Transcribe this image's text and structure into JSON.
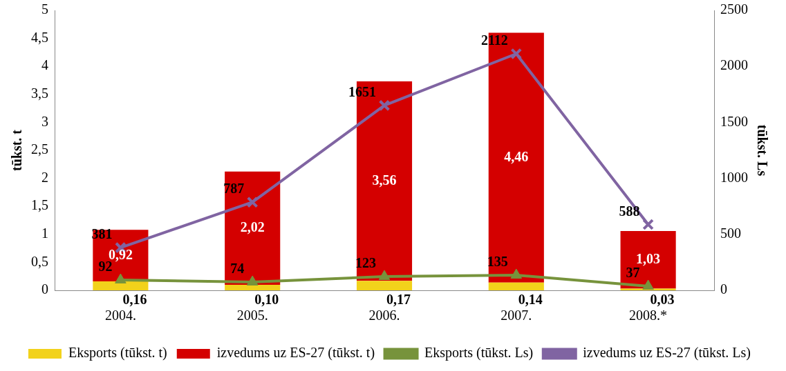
{
  "chart_data": {
    "type": "bar",
    "stacked": true,
    "categories": [
      "2004.",
      "2005.",
      "2006.",
      "2007.",
      "2008.*"
    ],
    "ylabel": "tūkst. t",
    "y2label": "tūkst. Ls",
    "ylim": [
      0,
      5
    ],
    "yticks": [
      0,
      {
        "value": 0.5,
        "label": "0,5"
      },
      1,
      {
        "value": 1.5,
        "label": "1,5"
      },
      2,
      {
        "value": 2.5,
        "label": "2,5"
      },
      3,
      {
        "value": 3.5,
        "label": "3,5"
      },
      4,
      {
        "value": 4.5,
        "label": "4,5"
      },
      5
    ],
    "y2lim": [
      0,
      2500
    ],
    "y2ticks": [
      0,
      500,
      1000,
      1500,
      2000,
      2500
    ],
    "grid": false,
    "legend": "bottom",
    "series": [
      {
        "name": "Eksports (tūkst. t)",
        "color": "#f2d21b",
        "values": [
          0.16,
          0.1,
          0.17,
          0.14,
          0.03
        ],
        "value_labels": [
          "0,16",
          "0,10",
          "0,17",
          "0,14",
          "0,03"
        ]
      },
      {
        "name": "izvedums uz ES-27 (tūkst. t)",
        "color": "#d40000",
        "values": [
          0.92,
          2.02,
          3.56,
          4.46,
          1.03
        ],
        "value_labels": [
          "0,92",
          "2,02",
          "3,56",
          "4,46",
          "1,03"
        ]
      },
      {
        "name": "Eksports (tūkst. Ls)",
        "type": "line",
        "axis": "y2",
        "marker": "triangle",
        "color": "#77933c",
        "values": [
          92,
          74,
          123,
          135,
          37
        ],
        "value_labels": [
          "92",
          "74",
          "123",
          "135",
          "37"
        ]
      },
      {
        "name": "izvedums uz ES-27 (tūkst. Ls)",
        "type": "line",
        "axis": "y2",
        "marker": "cross",
        "color": "#8064a2",
        "values": [
          381,
          787,
          1651,
          2112,
          588
        ],
        "value_labels": [
          "381",
          "787",
          "1651",
          "2112",
          "588"
        ]
      }
    ]
  }
}
